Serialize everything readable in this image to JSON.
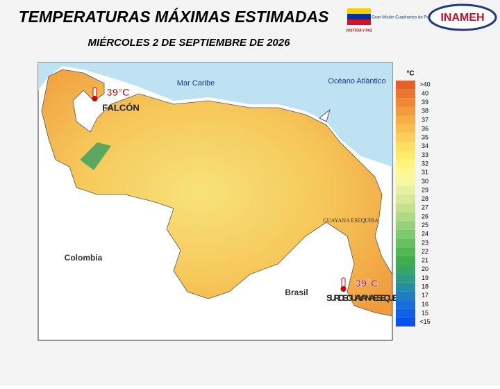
{
  "header": {
    "title": "TEMPERATURAS MÁXIMAS ESTIMADAS",
    "date": "MIÉRCOLES 2 DE SEPTIEMBRE DE 2026"
  },
  "logos": {
    "justicia": "JUSTICIA Y PAZ",
    "cuadrantes": "Gran Misión Cuadrantes de Paz",
    "inameh": "INAMEH"
  },
  "map": {
    "labels": {
      "sea": "Mar Caribe",
      "ocean": "Océano Atlántico",
      "colombia": "Colombia",
      "brasil": "Brasil",
      "guayana": "GUAYANA ESEQUIBA"
    },
    "hotspots": [
      {
        "temp": "39°C",
        "place": "FALCÓN"
      },
      {
        "temp": "39°C",
        "place": "SUR DE GUAYANA ESEQUIBA"
      }
    ]
  },
  "legend": {
    "unit": "°C",
    "items": [
      {
        "label": ">40",
        "color": "#e5602a"
      },
      {
        "label": "40",
        "color": "#ea7430"
      },
      {
        "label": "39",
        "color": "#ee8836"
      },
      {
        "label": "38",
        "color": "#f29a3e"
      },
      {
        "label": "37",
        "color": "#f5ad46"
      },
      {
        "label": "36",
        "color": "#f8bf4f"
      },
      {
        "label": "35",
        "color": "#fad058"
      },
      {
        "label": "34",
        "color": "#fcdf62"
      },
      {
        "label": "33",
        "color": "#fdeb6c"
      },
      {
        "label": "32",
        "color": "#fef37c"
      },
      {
        "label": "31",
        "color": "#fef892"
      },
      {
        "label": "30",
        "color": "#f6f7a2"
      },
      {
        "label": "29",
        "color": "#e6f0a0"
      },
      {
        "label": "28",
        "color": "#d6ea98"
      },
      {
        "label": "27",
        "color": "#c4e28e"
      },
      {
        "label": "26",
        "color": "#aed986"
      },
      {
        "label": "25",
        "color": "#96d07c"
      },
      {
        "label": "24",
        "color": "#7ec86e"
      },
      {
        "label": "23",
        "color": "#66c060"
      },
      {
        "label": "22",
        "color": "#50b852"
      },
      {
        "label": "21",
        "color": "#40ae4c"
      },
      {
        "label": "20",
        "color": "#38a662"
      },
      {
        "label": "19",
        "color": "#2e9c82"
      },
      {
        "label": "18",
        "color": "#268ea2"
      },
      {
        "label": "17",
        "color": "#207ec0"
      },
      {
        "label": "16",
        "color": "#186ed8"
      },
      {
        "label": "15",
        "color": "#1060e8"
      },
      {
        "label": "<15",
        "color": "#0a52f0"
      }
    ]
  }
}
